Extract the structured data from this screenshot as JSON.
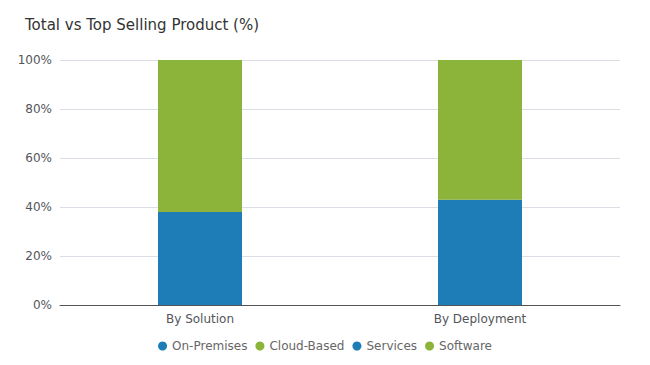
{
  "chart_data": {
    "type": "bar",
    "title": "Total vs Top Selling Product (%)",
    "categories": [
      "By Solution",
      "By Deployment"
    ],
    "series": [
      {
        "name": "On-Premises",
        "color": "#1E7DB6",
        "values": [
          null,
          43
        ]
      },
      {
        "name": "Cloud-Based",
        "color": "#8DB43A",
        "values": [
          null,
          57
        ]
      },
      {
        "name": "Services",
        "color": "#1E7DB6",
        "values": [
          38,
          null
        ]
      },
      {
        "name": "Software",
        "color": "#8DB43A",
        "values": [
          62,
          null
        ]
      }
    ],
    "stacked": true,
    "ylim": [
      0,
      100
    ],
    "yticks": [
      {
        "value": 0,
        "label": "0%"
      },
      {
        "value": 20,
        "label": "20%"
      },
      {
        "value": 40,
        "label": "40%"
      },
      {
        "value": 60,
        "label": "60%"
      },
      {
        "value": 80,
        "label": "80%"
      },
      {
        "value": 100,
        "label": "100%"
      }
    ],
    "grid": true,
    "legend": "bottom"
  }
}
